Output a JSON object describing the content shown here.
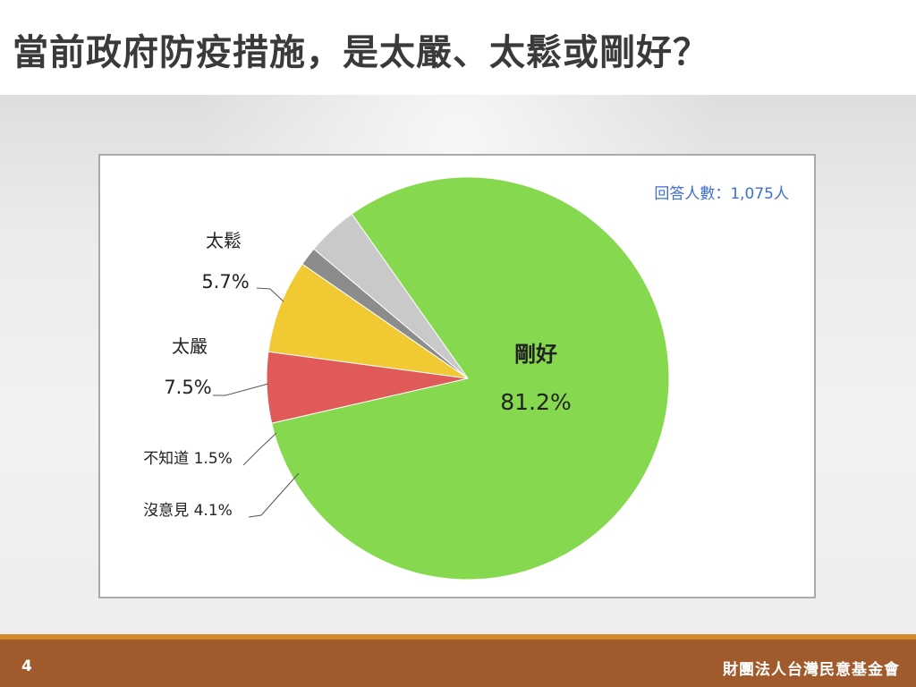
{
  "slide": {
    "title": "當前政府防疫措施，是太嚴、太鬆或剛好？",
    "page_number": "4",
    "organization": "財團法人台灣民意基金會"
  },
  "chart_data": {
    "type": "pie",
    "annotation": "回答人數：1,075人",
    "slices": [
      {
        "name": "剛好",
        "value": 81.2,
        "label": "81.2%",
        "color": "#86d94e"
      },
      {
        "name": "太鬆",
        "value": 5.7,
        "label": "5.7%",
        "color": "#e05a5a"
      },
      {
        "name": "太嚴",
        "value": 7.5,
        "label": "7.5%",
        "color": "#f1c933"
      },
      {
        "name": "不知道",
        "value": 1.5,
        "label": "1.5%",
        "color": "#8c8c8c"
      },
      {
        "name": "沒意見",
        "value": 4.1,
        "label": "4.1%",
        "color": "#c9c9c9"
      }
    ],
    "legend": "none",
    "annotation_color": "#3f6fcf"
  }
}
